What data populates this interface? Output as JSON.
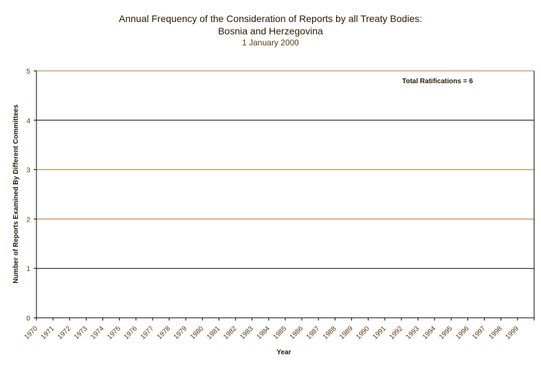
{
  "chart_data": {
    "type": "bar",
    "title_line1": "Annual Frequency of the Consideration of Reports by all Treaty Bodies:",
    "title_line2": "Bosnia and Herzegovina",
    "subtitle": "1 January 2000",
    "xlabel": "Year",
    "ylabel": "Number of Reports Examined By Different Committees",
    "categories": [
      "1970",
      "1971",
      "1972",
      "1973",
      "1974",
      "1975",
      "1976",
      "1977",
      "1978",
      "1979",
      "1980",
      "1981",
      "1982",
      "1983",
      "1984",
      "1985",
      "1986",
      "1987",
      "1988",
      "1989",
      "1990",
      "1991",
      "1992",
      "1993",
      "1994",
      "1995",
      "1996",
      "1997",
      "1998",
      "1999"
    ],
    "values": [
      0,
      0,
      0,
      0,
      0,
      0,
      0,
      0,
      0,
      0,
      0,
      0,
      0,
      0,
      0,
      0,
      0,
      0,
      0,
      0,
      0,
      0,
      0,
      0,
      0,
      0,
      0,
      0,
      0,
      0
    ],
    "ylim": [
      0,
      5
    ],
    "yticks": [
      0,
      1,
      2,
      3,
      4,
      5
    ],
    "grid": true,
    "annotation": "Total Ratifications = 6",
    "colors": {
      "gridline_alt": "#c07020",
      "gridline": "#000000",
      "axis": "#000000",
      "text": "#2a1800"
    }
  }
}
